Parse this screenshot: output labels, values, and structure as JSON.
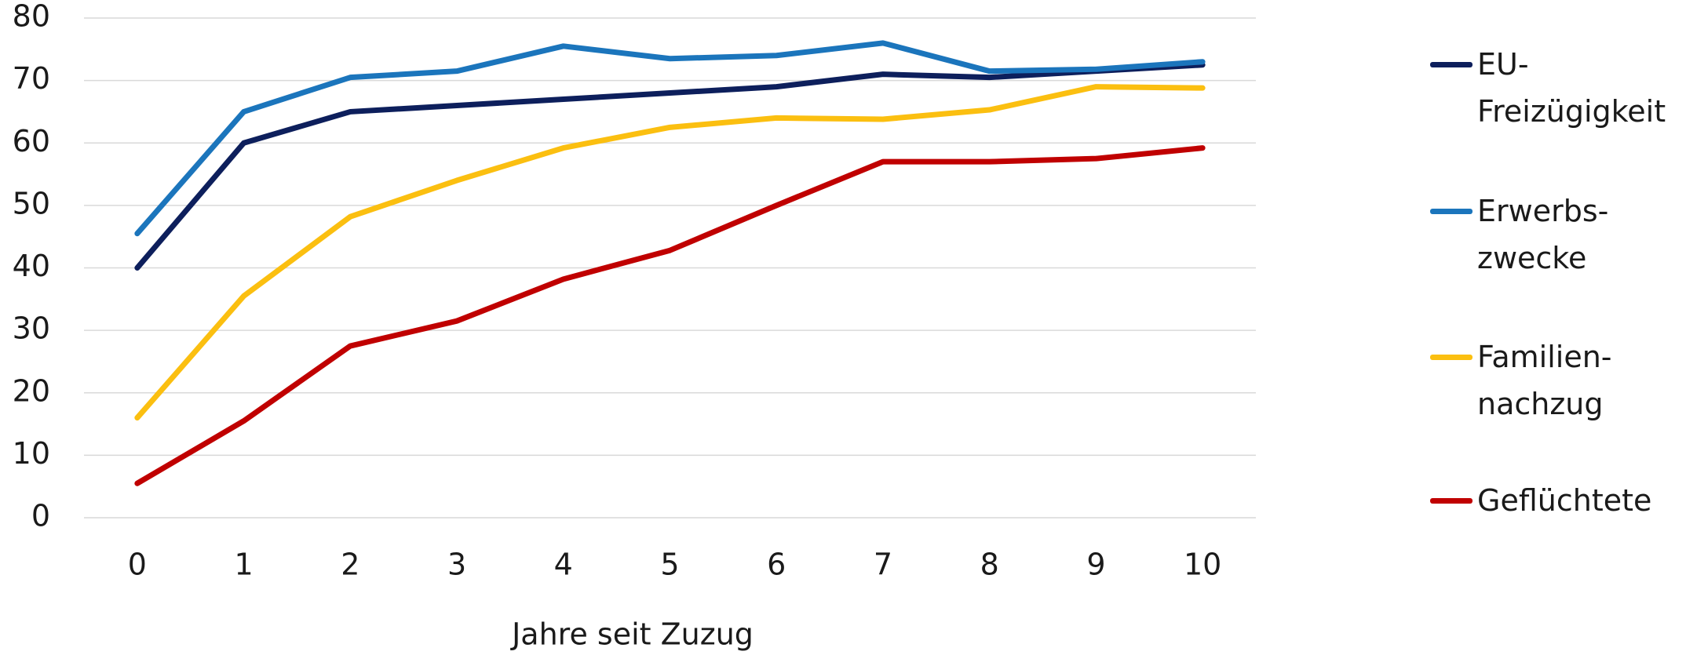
{
  "chart_data": {
    "type": "line",
    "x_label": "Jahre seit Zuzug",
    "x": [
      0,
      1,
      2,
      3,
      4,
      5,
      6,
      7,
      8,
      9,
      10
    ],
    "xlim": [
      -0.5,
      10.5
    ],
    "xticks": [
      0,
      1,
      2,
      3,
      4,
      5,
      6,
      7,
      8,
      9,
      10
    ],
    "ylim": [
      0,
      80
    ],
    "yticks": [
      0,
      10,
      20,
      30,
      40,
      50,
      60,
      70,
      80
    ],
    "grid": true,
    "legend": "right",
    "series": [
      {
        "name": "EU-\nFreizügigkeit",
        "color": "#0d1f5c",
        "values": [
          40,
          60,
          65,
          66,
          67,
          68,
          69,
          71,
          70.5,
          71.5,
          72.5
        ]
      },
      {
        "name": "Erwerbs-\nzwecke",
        "color": "#1b75bc",
        "values": [
          45.5,
          65,
          70.5,
          71.5,
          75.5,
          73.5,
          74,
          76,
          71.5,
          71.8,
          73
        ]
      },
      {
        "name": "Familien-\nnachzug",
        "color": "#fbbf10",
        "values": [
          16,
          35.5,
          48.2,
          54,
          59.2,
          62.5,
          64,
          63.8,
          65.3,
          69,
          68.8
        ]
      },
      {
        "name": "Geflüchtete",
        "color": "#c00000",
        "values": [
          5.5,
          15.5,
          27.5,
          31.5,
          38.2,
          42.8,
          50,
          57,
          57,
          57.5,
          59.2
        ]
      }
    ]
  }
}
